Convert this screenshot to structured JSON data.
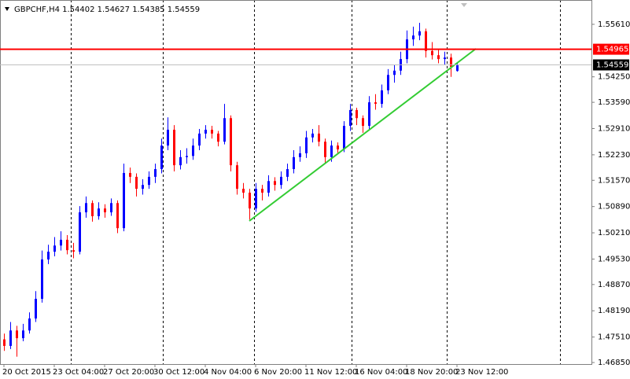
{
  "chart_data": {
    "type": "candlestick",
    "title": "GBPCHF,H4  1.54402 1.54627 1.54385 1.54559",
    "categories": [
      "20 Oct 2015",
      null,
      null,
      null,
      null,
      null,
      null,
      null,
      "23 Oct 04:00",
      null,
      null,
      null,
      null,
      null,
      null,
      null,
      "27 Oct 20:00",
      null,
      null,
      null,
      null,
      null,
      null,
      null,
      "30 Oct 12:00",
      null,
      null,
      null,
      null,
      null,
      null,
      null,
      "4 Nov 04:00",
      null,
      null,
      null,
      null,
      null,
      null,
      null,
      "6 Nov 20:00",
      null,
      null,
      null,
      null,
      null,
      null,
      null,
      "11 Nov 12:00",
      null,
      null,
      null,
      null,
      null,
      null,
      null,
      "16 Nov 04:00",
      null,
      null,
      null,
      null,
      null,
      null,
      null,
      "18 Nov 20:00",
      null,
      null,
      null,
      null,
      null,
      null,
      null,
      "23 Nov 12:00"
    ],
    "open": [
      1.4745,
      1.4728,
      1.4768,
      1.4748,
      1.4768,
      1.4799,
      1.485,
      1.4952,
      1.4972,
      1.4988,
      1.5003,
      1.4976,
      1.4972,
      1.5074,
      1.5098,
      1.5064,
      1.5084,
      1.5074,
      1.5098,
      1.5033,
      1.5176,
      1.5166,
      1.5135,
      1.5145,
      1.5166,
      1.5186,
      1.5247,
      1.5288,
      1.5196,
      1.5217,
      1.522,
      1.5247,
      1.5278,
      1.5288,
      1.5278,
      1.5257,
      1.5318,
      1.5196,
      1.5135,
      1.5125,
      1.5084,
      1.5135,
      1.5125,
      1.5155,
      1.5145,
      1.5166,
      1.5186,
      1.5217,
      1.5227,
      1.5268,
      1.5278,
      1.5257,
      1.5217,
      1.5247,
      1.5237,
      1.5298,
      1.5339,
      1.5318,
      1.5298,
      1.5359,
      1.5355,
      1.539,
      1.543,
      1.5441,
      1.5471,
      1.5522,
      1.5532,
      1.5543,
      1.5492,
      1.5481,
      1.5471,
      1.5475,
      1.54402
    ],
    "high": [
      1.476,
      1.479,
      1.478,
      1.4785,
      1.4815,
      1.487,
      1.4975,
      1.499,
      1.501,
      1.5025,
      1.5015,
      1.4995,
      1.509,
      1.5115,
      1.5105,
      1.51,
      1.5095,
      1.511,
      1.5105,
      1.52,
      1.519,
      1.5175,
      1.516,
      1.518,
      1.52,
      1.5265,
      1.532,
      1.53,
      1.5235,
      1.524,
      1.5265,
      1.529,
      1.53,
      1.5298,
      1.5285,
      1.5355,
      1.5325,
      1.5205,
      1.515,
      1.5135,
      1.515,
      1.5145,
      1.517,
      1.5165,
      1.518,
      1.52,
      1.5235,
      1.5245,
      1.5285,
      1.529,
      1.53,
      1.5265,
      1.526,
      1.5255,
      1.531,
      1.5355,
      1.5345,
      1.5325,
      1.5375,
      1.538,
      1.5405,
      1.5445,
      1.5455,
      1.549,
      1.5545,
      1.5555,
      1.5565,
      1.555,
      1.5515,
      1.5495,
      1.549,
      1.5485,
      1.54627
    ],
    "low": [
      1.4715,
      1.472,
      1.47,
      1.474,
      1.476,
      1.479,
      1.484,
      1.494,
      1.496,
      1.4975,
      1.4965,
      1.4955,
      1.4965,
      1.506,
      1.505,
      1.5055,
      1.506,
      1.5065,
      1.502,
      1.5025,
      1.515,
      1.5115,
      1.512,
      1.5135,
      1.515,
      1.5175,
      1.5235,
      1.518,
      1.5185,
      1.52,
      1.521,
      1.5235,
      1.5265,
      1.5265,
      1.5245,
      1.525,
      1.518,
      1.512,
      1.511,
      1.5055,
      1.5075,
      1.5105,
      1.5115,
      1.513,
      1.5135,
      1.5155,
      1.5175,
      1.5205,
      1.5215,
      1.5255,
      1.5245,
      1.52,
      1.5205,
      1.5225,
      1.523,
      1.5285,
      1.53,
      1.528,
      1.529,
      1.534,
      1.5345,
      1.538,
      1.541,
      1.543,
      1.546,
      1.5505,
      1.552,
      1.5475,
      1.547,
      1.546,
      1.5455,
      1.5425,
      1.54385
    ],
    "close": [
      1.4728,
      1.4768,
      1.4748,
      1.4768,
      1.4799,
      1.485,
      1.4952,
      1.4972,
      1.4988,
      1.5003,
      1.4976,
      1.4972,
      1.5074,
      1.5098,
      1.5064,
      1.5084,
      1.5074,
      1.5098,
      1.5033,
      1.5176,
      1.5166,
      1.5135,
      1.5145,
      1.5166,
      1.5186,
      1.5247,
      1.5288,
      1.5196,
      1.5217,
      1.522,
      1.5247,
      1.5278,
      1.5288,
      1.5278,
      1.5257,
      1.5318,
      1.5196,
      1.5135,
      1.5125,
      1.5084,
      1.5135,
      1.5125,
      1.5155,
      1.5145,
      1.5166,
      1.5186,
      1.5217,
      1.5227,
      1.5268,
      1.5278,
      1.5257,
      1.5217,
      1.5247,
      1.5237,
      1.5298,
      1.5339,
      1.5318,
      1.5298,
      1.5359,
      1.5355,
      1.539,
      1.543,
      1.5441,
      1.5471,
      1.5522,
      1.5532,
      1.5543,
      1.5492,
      1.5481,
      1.5471,
      1.5475,
      1.5451,
      1.54559
    ],
    "up_color": "#0000ff",
    "down_color": "#ff0000",
    "ylim": [
      1.4681,
      1.5624
    ],
    "yticks": [
      {
        "value": 1.5561,
        "label": "1.55610"
      },
      {
        "value": 1.5425,
        "label": "1.54250"
      },
      {
        "value": 1.5359,
        "label": "1.53590"
      },
      {
        "value": 1.5291,
        "label": "1.52910"
      },
      {
        "value": 1.5223,
        "label": "1.52230"
      },
      {
        "value": 1.5157,
        "label": "1.51570"
      },
      {
        "value": 1.5089,
        "label": "1.50890"
      },
      {
        "value": 1.5021,
        "label": "1.50210"
      },
      {
        "value": 1.4953,
        "label": "1.49530"
      },
      {
        "value": 1.4887,
        "label": "1.48870"
      },
      {
        "value": 1.4819,
        "label": "1.48190"
      },
      {
        "value": 1.4751,
        "label": "1.47510"
      },
      {
        "value": 1.4685,
        "label": "1.46850"
      }
    ],
    "hlines": [
      {
        "value": 1.54965,
        "label": "1.54965",
        "color": "#ff0000"
      },
      {
        "value": 1.54559,
        "label": "1.54559",
        "color": "#c0c0c0"
      }
    ]
  }
}
